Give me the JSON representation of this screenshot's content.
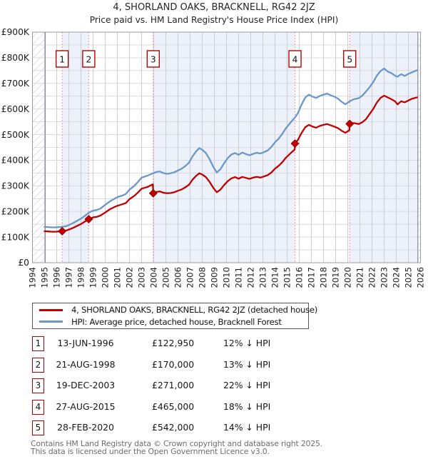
{
  "title": "4, SHORLAND OAKS, BRACKNELL, RG42 2JZ",
  "subtitle": "Price paid vs. HM Land Registry's House Price Index (HPI)",
  "legend": {
    "items": [
      {
        "label": "4, SHORLAND OAKS, BRACKNELL, RG42 2JZ (detached house)",
        "color": "#c00000"
      },
      {
        "label": "HPI: Average price, detached house, Bracknell Forest",
        "color": "#6b97c9"
      }
    ]
  },
  "sales": [
    {
      "n": "1",
      "date": "13-JUN-1996",
      "price": "£122,950",
      "hpi": "12% ↓ HPI",
      "year": 1996.45,
      "value_k": 122.95
    },
    {
      "n": "2",
      "date": "21-AUG-1998",
      "price": "£170,000",
      "hpi": "13% ↓ HPI",
      "year": 1998.64,
      "value_k": 170
    },
    {
      "n": "3",
      "date": "19-DEC-2003",
      "price": "£271,000",
      "hpi": "22% ↓ HPI",
      "year": 2003.96,
      "value_k": 271
    },
    {
      "n": "4",
      "date": "27-AUG-2015",
      "price": "£465,000",
      "hpi": "18% ↓ HPI",
      "year": 2015.65,
      "value_k": 465
    },
    {
      "n": "5",
      "date": "28-FEB-2020",
      "price": "£542,000",
      "hpi": "14% ↓ HPI",
      "year": 2020.16,
      "value_k": 542
    }
  ],
  "footer": {
    "line1": "Contains HM Land Registry data © Crown copyright and database right 2025.",
    "line2": "This data is licensed under the Open Government Licence v3.0."
  },
  "chart_data": {
    "type": "line",
    "unit": "GBP thousands",
    "x_range": [
      1994,
      2026
    ],
    "y_range": [
      0,
      900
    ],
    "x_ticks": [
      1994,
      1995,
      1996,
      1997,
      1998,
      1999,
      2000,
      2001,
      2002,
      2003,
      2004,
      2005,
      2006,
      2007,
      2008,
      2009,
      2010,
      2011,
      2012,
      2013,
      2014,
      2015,
      2016,
      2017,
      2018,
      2019,
      2020,
      2021,
      2022,
      2023,
      2024,
      2025,
      2026
    ],
    "y_tick_values": [
      0,
      100,
      200,
      300,
      400,
      500,
      600,
      700,
      800,
      900
    ],
    "y_tick_labels": [
      "£0",
      "£100K",
      "£200K",
      "£300K",
      "£400K",
      "£500K",
      "£600K",
      "£700K",
      "£800K",
      "£900K"
    ],
    "grid": true,
    "legend_position": "below",
    "hatch_regions": [
      [
        1994,
        1995.05
      ],
      [
        2025.78,
        2026
      ]
    ],
    "shaded_bands": [
      [
        1996.45,
        1998.64
      ],
      [
        2003.96,
        2015.65
      ],
      [
        2020.16,
        2025.78
      ]
    ],
    "colors": {
      "band": "#edf1fa",
      "grid": "#cfcfd6",
      "dashed_marker": "#f48a8a",
      "border": "#9b9ba3"
    },
    "series": [
      {
        "name": "HPI: Average price, detached house, Bracknell Forest",
        "color": "#6b97c9",
        "points": [
          [
            1995.0,
            140
          ],
          [
            1995.3,
            139
          ],
          [
            1995.6,
            138
          ],
          [
            1995.9,
            138
          ],
          [
            1996.2,
            139
          ],
          [
            1996.45,
            140
          ],
          [
            1996.8,
            143
          ],
          [
            1997.1,
            149
          ],
          [
            1997.4,
            156
          ],
          [
            1997.7,
            164
          ],
          [
            1998.0,
            172
          ],
          [
            1998.3,
            182
          ],
          [
            1998.64,
            195
          ],
          [
            1999.0,
            203
          ],
          [
            1999.3,
            206
          ],
          [
            1999.6,
            211
          ],
          [
            2000.0,
            226
          ],
          [
            2000.4,
            240
          ],
          [
            2000.7,
            248
          ],
          [
            2001.0,
            256
          ],
          [
            2001.4,
            262
          ],
          [
            2001.7,
            268
          ],
          [
            2002.0,
            285
          ],
          [
            2002.4,
            300
          ],
          [
            2002.7,
            315
          ],
          [
            2003.0,
            332
          ],
          [
            2003.5,
            340
          ],
          [
            2003.9,
            348
          ],
          [
            2004.2,
            354
          ],
          [
            2004.5,
            356
          ],
          [
            2004.8,
            350
          ],
          [
            2005.1,
            347
          ],
          [
            2005.4,
            349
          ],
          [
            2005.7,
            353
          ],
          [
            2006.0,
            360
          ],
          [
            2006.3,
            367
          ],
          [
            2006.6,
            377
          ],
          [
            2006.9,
            390
          ],
          [
            2007.2,
            415
          ],
          [
            2007.5,
            435
          ],
          [
            2007.75,
            447
          ],
          [
            2008.0,
            441
          ],
          [
            2008.3,
            428
          ],
          [
            2008.6,
            405
          ],
          [
            2008.9,
            375
          ],
          [
            2009.2,
            352
          ],
          [
            2009.5,
            365
          ],
          [
            2009.8,
            388
          ],
          [
            2010.1,
            408
          ],
          [
            2010.4,
            422
          ],
          [
            2010.7,
            428
          ],
          [
            2011.0,
            421
          ],
          [
            2011.3,
            430
          ],
          [
            2011.6,
            424
          ],
          [
            2011.9,
            419
          ],
          [
            2012.2,
            425
          ],
          [
            2012.5,
            429
          ],
          [
            2012.8,
            426
          ],
          [
            2013.1,
            432
          ],
          [
            2013.4,
            438
          ],
          [
            2013.7,
            452
          ],
          [
            2014.0,
            470
          ],
          [
            2014.3,
            484
          ],
          [
            2014.6,
            503
          ],
          [
            2014.9,
            525
          ],
          [
            2015.3,
            548
          ],
          [
            2015.65,
            567
          ],
          [
            2015.9,
            585
          ],
          [
            2016.2,
            618
          ],
          [
            2016.5,
            645
          ],
          [
            2016.8,
            656
          ],
          [
            2017.1,
            648
          ],
          [
            2017.4,
            643
          ],
          [
            2017.7,
            651
          ],
          [
            2018.0,
            656
          ],
          [
            2018.3,
            660
          ],
          [
            2018.6,
            653
          ],
          [
            2018.9,
            648
          ],
          [
            2019.2,
            640
          ],
          [
            2019.5,
            628
          ],
          [
            2019.8,
            618
          ],
          [
            2020.16,
            630
          ],
          [
            2020.5,
            638
          ],
          [
            2020.9,
            642
          ],
          [
            2021.2,
            652
          ],
          [
            2021.5,
            668
          ],
          [
            2021.8,
            685
          ],
          [
            2022.1,
            705
          ],
          [
            2022.4,
            730
          ],
          [
            2022.7,
            748
          ],
          [
            2023.0,
            758
          ],
          [
            2023.3,
            746
          ],
          [
            2023.6,
            740
          ],
          [
            2023.9,
            730
          ],
          [
            2024.1,
            726
          ],
          [
            2024.4,
            736
          ],
          [
            2024.7,
            729
          ],
          [
            2025.0,
            737
          ],
          [
            2025.3,
            743
          ],
          [
            2025.7,
            751
          ]
        ]
      },
      {
        "name": "4, SHORLAND OAKS, BRACKNELL, RG42 2JZ (detached house)",
        "color": "#c00000",
        "points": [
          [
            1995.0,
            123
          ],
          [
            1995.3,
            122
          ],
          [
            1995.6,
            121
          ],
          [
            1995.9,
            121
          ],
          [
            1996.2,
            122
          ],
          [
            1996.45,
            123
          ],
          [
            1996.8,
            126
          ],
          [
            1997.1,
            131
          ],
          [
            1997.4,
            137
          ],
          [
            1997.7,
            144
          ],
          [
            1998.0,
            151
          ],
          [
            1998.3,
            160
          ],
          [
            1998.64,
            170
          ],
          [
            1999.0,
            177
          ],
          [
            1999.3,
            179
          ],
          [
            1999.6,
            184
          ],
          [
            2000.0,
            196
          ],
          [
            2000.4,
            209
          ],
          [
            2000.7,
            216
          ],
          [
            2001.0,
            222
          ],
          [
            2001.4,
            228
          ],
          [
            2001.7,
            233
          ],
          [
            2002.0,
            248
          ],
          [
            2002.4,
            261
          ],
          [
            2002.7,
            274
          ],
          [
            2003.0,
            289
          ],
          [
            2003.5,
            296
          ],
          [
            2003.93,
            306
          ],
          [
            2003.96,
            271
          ],
          [
            2004.2,
            276
          ],
          [
            2004.5,
            278
          ],
          [
            2004.8,
            273
          ],
          [
            2005.1,
            271
          ],
          [
            2005.4,
            272
          ],
          [
            2005.7,
            275
          ],
          [
            2006.0,
            281
          ],
          [
            2006.3,
            286
          ],
          [
            2006.6,
            294
          ],
          [
            2006.9,
            304
          ],
          [
            2007.2,
            324
          ],
          [
            2007.5,
            339
          ],
          [
            2007.75,
            349
          ],
          [
            2008.0,
            344
          ],
          [
            2008.3,
            334
          ],
          [
            2008.6,
            316
          ],
          [
            2008.9,
            293
          ],
          [
            2009.2,
            275
          ],
          [
            2009.5,
            285
          ],
          [
            2009.8,
            303
          ],
          [
            2010.1,
            318
          ],
          [
            2010.4,
            329
          ],
          [
            2010.7,
            334
          ],
          [
            2011.0,
            328
          ],
          [
            2011.3,
            335
          ],
          [
            2011.6,
            331
          ],
          [
            2011.9,
            327
          ],
          [
            2012.2,
            332
          ],
          [
            2012.5,
            335
          ],
          [
            2012.8,
            332
          ],
          [
            2013.1,
            337
          ],
          [
            2013.4,
            342
          ],
          [
            2013.7,
            352
          ],
          [
            2014.0,
            367
          ],
          [
            2014.3,
            378
          ],
          [
            2014.6,
            392
          ],
          [
            2014.9,
            410
          ],
          [
            2015.3,
            428
          ],
          [
            2015.63,
            442
          ],
          [
            2015.65,
            465
          ],
          [
            2015.9,
            480
          ],
          [
            2016.2,
            507
          ],
          [
            2016.5,
            529
          ],
          [
            2016.8,
            538
          ],
          [
            2017.1,
            531
          ],
          [
            2017.4,
            527
          ],
          [
            2017.7,
            534
          ],
          [
            2018.0,
            538
          ],
          [
            2018.3,
            541
          ],
          [
            2018.6,
            536
          ],
          [
            2018.9,
            531
          ],
          [
            2019.2,
            525
          ],
          [
            2019.5,
            515
          ],
          [
            2019.8,
            507
          ],
          [
            2020.13,
            517
          ],
          [
            2020.16,
            542
          ],
          [
            2020.5,
            545
          ],
          [
            2020.9,
            541
          ],
          [
            2021.2,
            548
          ],
          [
            2021.5,
            560
          ],
          [
            2021.8,
            580
          ],
          [
            2022.1,
            600
          ],
          [
            2022.4,
            625
          ],
          [
            2022.7,
            643
          ],
          [
            2023.0,
            652
          ],
          [
            2023.3,
            645
          ],
          [
            2023.6,
            638
          ],
          [
            2023.9,
            630
          ],
          [
            2024.1,
            618
          ],
          [
            2024.4,
            630
          ],
          [
            2024.7,
            626
          ],
          [
            2025.0,
            633
          ],
          [
            2025.3,
            640
          ],
          [
            2025.7,
            645
          ]
        ]
      }
    ]
  }
}
